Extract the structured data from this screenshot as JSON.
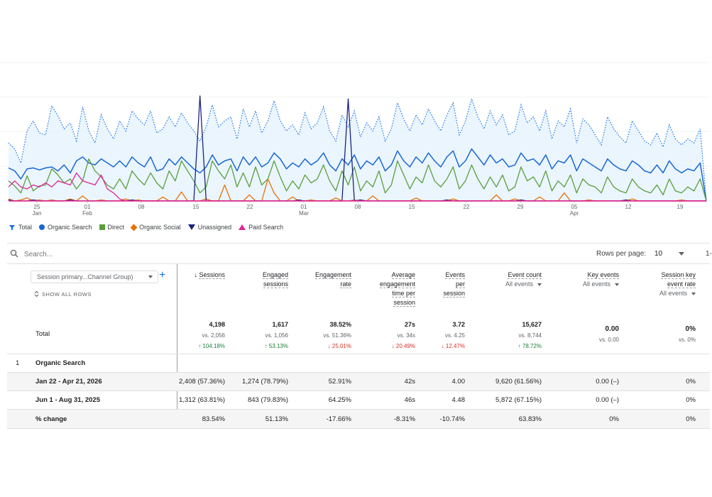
{
  "chart_data": {
    "type": "line",
    "x_tick_labels": [
      {
        "day": "25",
        "month": "Jan"
      },
      {
        "day": "01",
        "month": "Feb"
      },
      {
        "day": "08",
        "month": ""
      },
      {
        "day": "15",
        "month": ""
      },
      {
        "day": "22",
        "month": ""
      },
      {
        "day": "01",
        "month": "Mar"
      },
      {
        "day": "08",
        "month": ""
      },
      {
        "day": "15",
        "month": ""
      },
      {
        "day": "22",
        "month": ""
      },
      {
        "day": "29",
        "month": ""
      },
      {
        "day": "05",
        "month": "Apr"
      },
      {
        "day": "12",
        "month": ""
      },
      {
        "day": "19",
        "month": ""
      }
    ],
    "x_start": "2026-01-22",
    "ylim": [
      0,
      110
    ],
    "grid": true,
    "legend_position": "bottom-left",
    "series": [
      {
        "name": "Total",
        "color": "#1a73e8",
        "style": "dotted-area",
        "values": [
          58,
          52,
          38,
          70,
          80,
          68,
          66,
          95,
          85,
          72,
          78,
          60,
          94,
          70,
          58,
          86,
          72,
          62,
          80,
          70,
          90,
          82,
          76,
          90,
          68,
          72,
          84,
          74,
          88,
          78,
          70,
          60,
          74,
          96,
          74,
          80,
          84,
          62,
          92,
          74,
          90,
          68,
          80,
          100,
          80,
          70,
          76,
          66,
          88,
          72,
          78,
          94,
          70,
          60,
          86,
          74,
          90,
          64,
          78,
          70,
          84,
          60,
          72,
          98,
          82,
          70,
          86,
          76,
          92,
          80,
          70,
          86,
          98,
          66,
          80,
          102,
          84,
          72,
          90,
          76,
          86,
          66,
          70,
          96,
          78,
          84,
          70,
          90,
          62,
          80,
          74,
          92,
          58,
          82,
          76,
          66,
          56,
          84,
          72,
          64,
          58,
          80,
          70,
          60,
          56,
          68,
          54,
          76,
          62,
          56,
          62,
          58,
          72,
          0
        ]
      },
      {
        "name": "Organic Search",
        "color": "#1967d2",
        "style": "line",
        "values": [
          33,
          30,
          22,
          32,
          33,
          31,
          33,
          34,
          30,
          36,
          28,
          40,
          44,
          38,
          36,
          42,
          38,
          34,
          40,
          34,
          44,
          38,
          34,
          44,
          30,
          32,
          42,
          36,
          44,
          38,
          32,
          28,
          34,
          46,
          36,
          40,
          42,
          30,
          44,
          36,
          44,
          34,
          38,
          48,
          42,
          32,
          38,
          34,
          42,
          36,
          40,
          48,
          36,
          30,
          42,
          36,
          46,
          32,
          40,
          36,
          44,
          30,
          36,
          50,
          40,
          34,
          44,
          38,
          48,
          40,
          34,
          44,
          50,
          34,
          40,
          52,
          44,
          36,
          46,
          38,
          42,
          34,
          36,
          48,
          40,
          42,
          36,
          46,
          32,
          40,
          38,
          46,
          30,
          42,
          38,
          34,
          30,
          42,
          36,
          32,
          30,
          40,
          36,
          30,
          28,
          36,
          28,
          40,
          32,
          28,
          32,
          30,
          38,
          0
        ]
      },
      {
        "name": "Direct",
        "color": "#5a9e3c",
        "style": "line",
        "values": [
          20,
          15,
          8,
          25,
          10,
          15,
          16,
          32,
          26,
          18,
          22,
          12,
          20,
          42,
          30,
          24,
          16,
          12,
          22,
          12,
          30,
          22,
          16,
          28,
          18,
          12,
          30,
          20,
          40,
          30,
          20,
          8,
          14,
          40,
          30,
          22,
          36,
          14,
          28,
          14,
          34,
          16,
          22,
          40,
          24,
          10,
          20,
          12,
          26,
          18,
          22,
          36,
          20,
          10,
          30,
          16,
          34,
          10,
          20,
          14,
          30,
          8,
          16,
          40,
          26,
          12,
          24,
          18,
          36,
          20,
          14,
          22,
          34,
          12,
          20,
          36,
          22,
          12,
          24,
          14,
          26,
          10,
          14,
          34,
          20,
          24,
          14,
          30,
          10,
          20,
          14,
          26,
          8,
          22,
          16,
          14,
          8,
          24,
          14,
          10,
          8,
          22,
          14,
          10,
          8,
          16,
          6,
          22,
          10,
          8,
          14,
          10,
          22,
          0
        ]
      },
      {
        "name": "Organic Social",
        "color": "#e8710a",
        "style": "line",
        "values": [
          2,
          0,
          1,
          3,
          0,
          1,
          0,
          1,
          0,
          0,
          2,
          0,
          5,
          0,
          0,
          1,
          0,
          0,
          0,
          2,
          0,
          1,
          0,
          0,
          0,
          4,
          0,
          0,
          9,
          0,
          0,
          0,
          2,
          0,
          0,
          16,
          0,
          0,
          0,
          6,
          0,
          0,
          22,
          8,
          0,
          0,
          4,
          0,
          0,
          1,
          0,
          0,
          0,
          3,
          0,
          0,
          1,
          0,
          0,
          5,
          0,
          0,
          0,
          0,
          0,
          0,
          3,
          0,
          0,
          0,
          0,
          0,
          2,
          0,
          0,
          0,
          0,
          0,
          0,
          6,
          0,
          0,
          2,
          0,
          0,
          0,
          4,
          0,
          0,
          0,
          8,
          0,
          0,
          0,
          1,
          0,
          0,
          0,
          0,
          0,
          0,
          2,
          0,
          0,
          0,
          0,
          0,
          0,
          0,
          1,
          0,
          0,
          0,
          0
        ]
      },
      {
        "name": "Unassigned",
        "color": "#1a237e",
        "style": "line",
        "values": [
          1,
          0,
          0,
          0,
          1,
          0,
          0,
          0,
          0,
          0,
          1,
          0,
          0,
          0,
          0,
          0,
          0,
          0,
          0,
          0,
          1,
          0,
          0,
          0,
          0,
          0,
          0,
          0,
          0,
          0,
          0,
          105,
          0,
          0,
          0,
          0,
          0,
          0,
          0,
          0,
          0,
          0,
          0,
          0,
          0,
          0,
          0,
          1,
          0,
          0,
          0,
          0,
          0,
          0,
          0,
          102,
          0,
          1,
          0,
          0,
          0,
          0,
          0,
          0,
          0,
          0,
          0,
          0,
          0,
          0,
          0,
          1,
          0,
          0,
          0,
          0,
          0,
          0,
          0,
          0,
          0,
          0,
          0,
          1,
          0,
          0,
          0,
          0,
          0,
          0,
          0,
          0,
          0,
          0,
          0,
          0,
          0,
          0,
          0,
          0,
          1,
          0,
          0,
          0,
          0,
          0,
          0,
          0,
          0,
          0,
          0,
          0,
          0,
          0
        ]
      },
      {
        "name": "Paid Search",
        "color": "#e52592",
        "style": "line",
        "values": [
          14,
          20,
          14,
          12,
          16,
          14,
          18,
          14,
          20,
          18,
          16,
          28,
          20,
          18,
          16,
          26,
          12,
          8,
          2,
          0,
          0,
          0,
          0,
          0,
          0,
          0,
          0,
          0,
          0,
          0,
          0,
          0,
          0,
          0,
          0,
          0,
          0,
          0,
          0,
          0,
          0,
          0,
          0,
          0,
          0,
          0,
          0,
          0,
          0,
          0,
          0,
          0,
          0,
          0,
          0,
          0,
          0,
          0,
          0,
          0,
          0,
          0,
          0,
          0,
          0,
          0,
          0,
          0,
          0,
          0,
          0,
          0,
          0,
          0,
          0,
          0,
          0,
          0,
          0,
          0,
          0,
          0,
          0,
          0,
          0,
          0,
          0,
          0,
          0,
          0,
          0,
          0,
          0,
          0,
          0,
          0,
          0,
          0,
          0,
          0,
          0,
          0,
          0,
          0,
          0,
          0,
          0,
          0,
          0,
          0,
          0,
          0,
          0,
          0
        ]
      }
    ]
  },
  "legend": [
    {
      "label": "Total",
      "icon": "total-icon",
      "color": "#1a73e8"
    },
    {
      "label": "Organic Search",
      "icon": "dot",
      "color": "#1967d2"
    },
    {
      "label": "Direct",
      "icon": "square",
      "color": "#5a9e3c"
    },
    {
      "label": "Organic Social",
      "icon": "diamond",
      "color": "#e8710a"
    },
    {
      "label": "Unassigned",
      "icon": "triangle-down",
      "color": "#1a237e"
    },
    {
      "label": "Paid Search",
      "icon": "triangle-up",
      "color": "#e52592"
    }
  ],
  "toolbar": {
    "search_placeholder": "Search...",
    "rows_per_page_label": "Rows per page:",
    "rows_per_page_value": "10",
    "pager_text": "1-"
  },
  "table": {
    "dimension_select": "Session primary...Channel Group)",
    "show_all_rows": "SHOW ALL ROWS",
    "headers": {
      "sessions": "Sessions",
      "engaged_l1": "Engaged",
      "engaged_l2": "sessions",
      "rate_l1": "Engagement",
      "rate_l2": "rate",
      "avg_l1": "Average",
      "avg_l2": "engagement",
      "avg_l3": "time per",
      "avg_l4": "session",
      "eps_l1": "Events",
      "eps_l2": "per",
      "eps_l3": "session",
      "event_count": "Event count",
      "event_count_sub": "All events",
      "key_events": "Key events",
      "key_events_sub": "All events",
      "skr_l1": "Session key",
      "skr_l2": "event rate",
      "skr_sub": "All events"
    },
    "total": {
      "label": "Total",
      "sessions": {
        "v": "4,198",
        "vs": "vs. 2,056",
        "chg": "↑ 104.18%"
      },
      "engaged": {
        "v": "1,617",
        "vs": "vs. 1,056",
        "chg": "↑ 53.13%"
      },
      "rate": {
        "v": "38.52%",
        "vs": "vs. 51.36%",
        "chg": "↓ 25.01%"
      },
      "avg": {
        "v": "27s",
        "vs": "vs. 34s",
        "chg": "↓ 20.49%"
      },
      "eps": {
        "v": "3.72",
        "vs": "vs. 4.25",
        "chg": "↓ 12.47%"
      },
      "events": {
        "v": "15,627",
        "vs": "vs. 8,744",
        "chg": "↑ 78.72%"
      },
      "key": {
        "v": "0.00",
        "vs": "vs. 0.00"
      },
      "skr": {
        "v": "0%",
        "vs": "vs. 0%"
      }
    },
    "group": {
      "index": "1",
      "name": "Organic Search"
    },
    "rows": [
      {
        "label": "Jan 22 - Apr 21, 2026",
        "sessions": "2,408 (57.36%)",
        "engaged": "1,274 (78.79%)",
        "rate": "52.91%",
        "avg": "42s",
        "eps": "4.00",
        "events": "9,620 (61.56%)",
        "key": "0.00 (–)",
        "skr": "0%"
      },
      {
        "label": "Jun 1 - Aug 31, 2025",
        "sessions": "1,312 (63.81%)",
        "engaged": "843 (79.83%)",
        "rate": "64.25%",
        "avg": "46s",
        "eps": "4.48",
        "events": "5,872 (67.15%)",
        "key": "0.00 (–)",
        "skr": "0%"
      },
      {
        "label": "% change",
        "sessions": "83.54%",
        "engaged": "51.13%",
        "rate": "-17.66%",
        "avg": "-8.31%",
        "eps": "-10.74%",
        "events": "63.83%",
        "key": "0%",
        "skr": "0%"
      }
    ]
  }
}
